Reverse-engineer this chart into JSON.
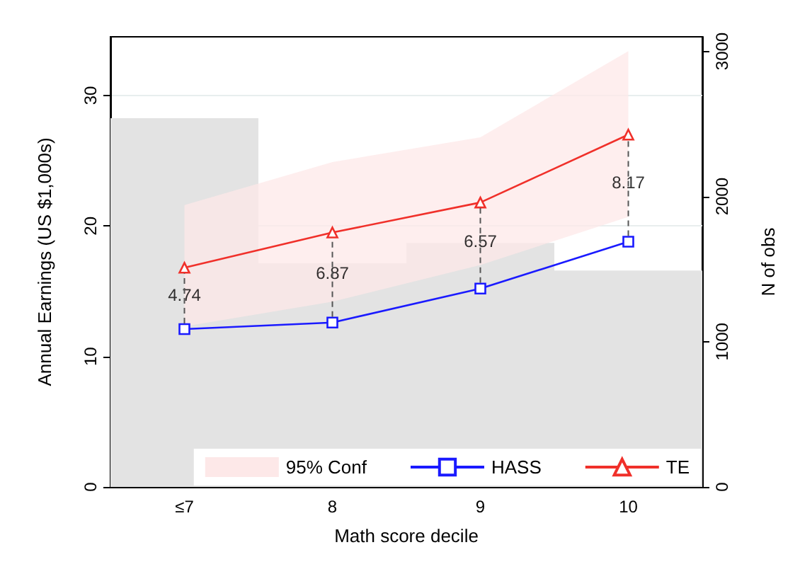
{
  "chart_data": {
    "type": "line",
    "xlabel": "Math score decile",
    "ylabel": "Annual Earnings (US $1,000s)",
    "y2label": "N of obs",
    "categories": [
      "≤7",
      "8",
      "9",
      "10"
    ],
    "series": [
      {
        "type": "bar",
        "axis": "y2",
        "color": "#e3e3e3",
        "values": [
          2540,
          1540,
          1680,
          1490
        ]
      },
      {
        "type": "area",
        "name": "95% Conf",
        "color": "#fde8e8",
        "values": [
          null,
          null,
          null,
          null
        ],
        "lower": [
          12.3,
          14.2,
          17.0,
          20.7
        ],
        "upper": [
          21.6,
          24.9,
          26.8,
          33.4
        ]
      },
      {
        "name": "HASS",
        "color": "#1a1aff",
        "marker": "square",
        "values": [
          12.1,
          12.6,
          15.2,
          18.8
        ]
      },
      {
        "name": "TE",
        "color": "#f0302a",
        "marker": "triangle",
        "values": [
          16.8,
          19.5,
          21.8,
          27.0
        ]
      }
    ],
    "ylim": [
      0,
      34.5
    ],
    "yticks": [
      0,
      10,
      20,
      30
    ],
    "y2lim": [
      0,
      3100
    ],
    "y2ticks": [
      0,
      1000,
      2000,
      3000
    ],
    "annotations": [
      "4.74",
      "6.87",
      "6.57",
      "8.17"
    ],
    "grid": "y",
    "legend": "bottom right"
  }
}
